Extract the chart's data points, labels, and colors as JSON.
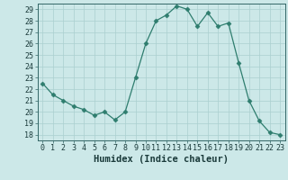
{
  "x": [
    0,
    1,
    2,
    3,
    4,
    5,
    6,
    7,
    8,
    9,
    10,
    11,
    12,
    13,
    14,
    15,
    16,
    17,
    18,
    19,
    20,
    21,
    22,
    23
  ],
  "y": [
    22.5,
    21.5,
    21.0,
    20.5,
    20.2,
    19.7,
    20.0,
    19.3,
    20.0,
    23.0,
    26.0,
    28.0,
    28.5,
    29.3,
    29.0,
    27.5,
    28.7,
    27.5,
    27.8,
    24.3,
    21.0,
    19.2,
    18.2,
    18.0
  ],
  "line_color": "#2e7d6e",
  "marker": "D",
  "marker_size": 2.5,
  "bg_color": "#cce8e8",
  "grid_color": "#aacfcf",
  "xlabel": "Humidex (Indice chaleur)",
  "ylim": [
    17.5,
    29.5
  ],
  "yticks": [
    18,
    19,
    20,
    21,
    22,
    23,
    24,
    25,
    26,
    27,
    28,
    29
  ],
  "xticks": [
    0,
    1,
    2,
    3,
    4,
    5,
    6,
    7,
    8,
    9,
    10,
    11,
    12,
    13,
    14,
    15,
    16,
    17,
    18,
    19,
    20,
    21,
    22,
    23
  ],
  "tick_fontsize": 6,
  "xlabel_fontsize": 7.5
}
